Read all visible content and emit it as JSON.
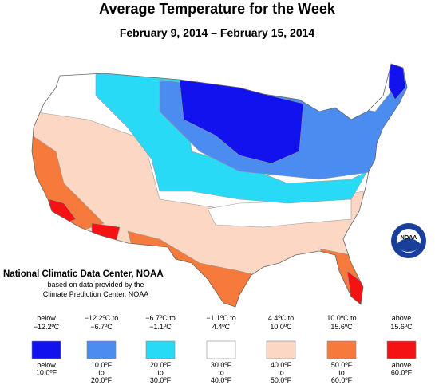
{
  "title": "Average Temperature for the Week",
  "subtitle": "February 9, 2014 – February 15, 2014",
  "credit": {
    "org": "National Climatic Data Center, NOAA",
    "lines": [
      "based on data provided by the",
      "Climate Prediction Center, NOAA"
    ]
  },
  "logo": "NOAA",
  "legend": [
    {
      "color": "#1212ee",
      "celsius": [
        "below",
        "−12.2ºC"
      ],
      "fahrenheit": [
        "below",
        "10.0ºF"
      ]
    },
    {
      "color": "#4a8cf0",
      "celsius": [
        "−12.2ºC to",
        "−6.7ºC"
      ],
      "fahrenheit": [
        "10.0ºF",
        "to",
        "20.0ºF"
      ]
    },
    {
      "color": "#28daf6",
      "celsius": [
        "−6.7ºC to",
        "−1.1ºC"
      ],
      "fahrenheit": [
        "20.0ºF",
        "to",
        "30.0ºF"
      ]
    },
    {
      "color": "#ffffff",
      "celsius": [
        "−1.1ºC to",
        "4.4ºC"
      ],
      "fahrenheit": [
        "30.0ºF",
        "to",
        "40.0ºF"
      ]
    },
    {
      "color": "#fbd7c4",
      "celsius": [
        "4.4ºC to",
        "10.0ºC"
      ],
      "fahrenheit": [
        "40.0ºF",
        "to",
        "50.0ºF"
      ]
    },
    {
      "color": "#f57a3c",
      "celsius": [
        "10.0ºC to",
        "15.6ºC"
      ],
      "fahrenheit": [
        "50.0ºF",
        "to",
        "60.0ºF"
      ]
    },
    {
      "color": "#f41212",
      "celsius": [
        "above",
        "15.6ºC"
      ],
      "fahrenheit": [
        "above",
        "60.0ºF"
      ]
    }
  ]
}
